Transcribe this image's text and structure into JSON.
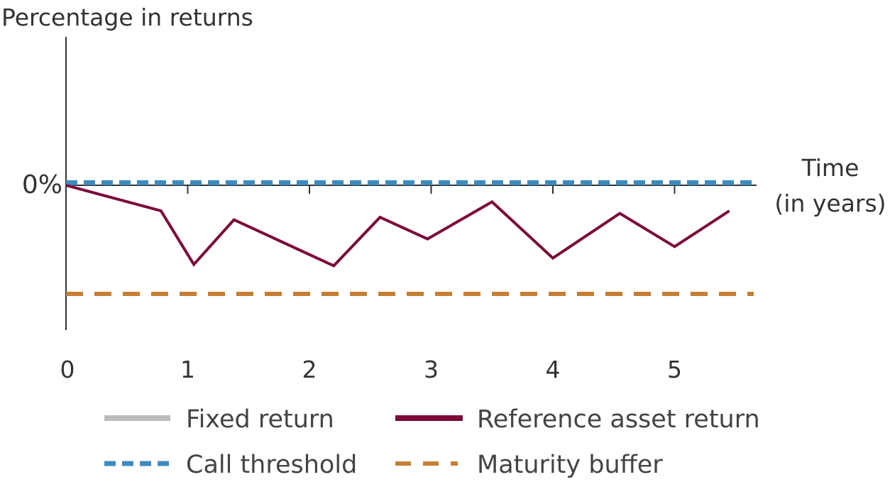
{
  "chart_data": {
    "type": "line",
    "ylabel": "Percentage in returns",
    "xlabel_lines": [
      "Time",
      "(in years)"
    ],
    "x_ticks": [
      "0",
      "1",
      "2",
      "3",
      "4",
      "5"
    ],
    "y_tick_label": "0%",
    "xlim": [
      0,
      5.65
    ],
    "ylim": [
      -1.2,
      1.2
    ],
    "grid": false,
    "legend_position": "bottom",
    "series": [
      {
        "name": "Fixed return",
        "style": "solid",
        "color": "#bbbbbb",
        "points": []
      },
      {
        "name": "Reference asset return",
        "style": "solid",
        "color": "#7b0a3a",
        "points": [
          {
            "x": 0,
            "y": 0
          },
          {
            "x": 0.78,
            "y": -0.2
          },
          {
            "x": 1.05,
            "y": -0.62
          },
          {
            "x": 1.38,
            "y": -0.27
          },
          {
            "x": 2.2,
            "y": -0.63
          },
          {
            "x": 2.58,
            "y": -0.25
          },
          {
            "x": 2.97,
            "y": -0.42
          },
          {
            "x": 3.5,
            "y": -0.13
          },
          {
            "x": 4.0,
            "y": -0.57
          },
          {
            "x": 4.55,
            "y": -0.22
          },
          {
            "x": 5.0,
            "y": -0.48
          },
          {
            "x": 5.45,
            "y": -0.2
          }
        ]
      },
      {
        "name": "Call threshold",
        "style": "dashed",
        "color": "#3d8bbf",
        "points": [
          {
            "x": 0,
            "y": 0.02
          },
          {
            "x": 5.65,
            "y": 0.02
          }
        ]
      },
      {
        "name": "Maturity buffer",
        "style": "dashed",
        "color": "#c47f35",
        "points": [
          {
            "x": 0,
            "y": -0.85
          },
          {
            "x": 5.65,
            "y": -0.85
          }
        ]
      }
    ],
    "legend": [
      {
        "label": "Fixed return",
        "style": "solid",
        "color": "#bbbbbb"
      },
      {
        "label": "Reference asset return",
        "style": "solid",
        "color": "#7b0a3a"
      },
      {
        "label": "Call threshold",
        "style": "dashed",
        "color": "#3d8bbf"
      },
      {
        "label": "Maturity buffer",
        "style": "dashed",
        "color": "#c47f35"
      }
    ]
  }
}
